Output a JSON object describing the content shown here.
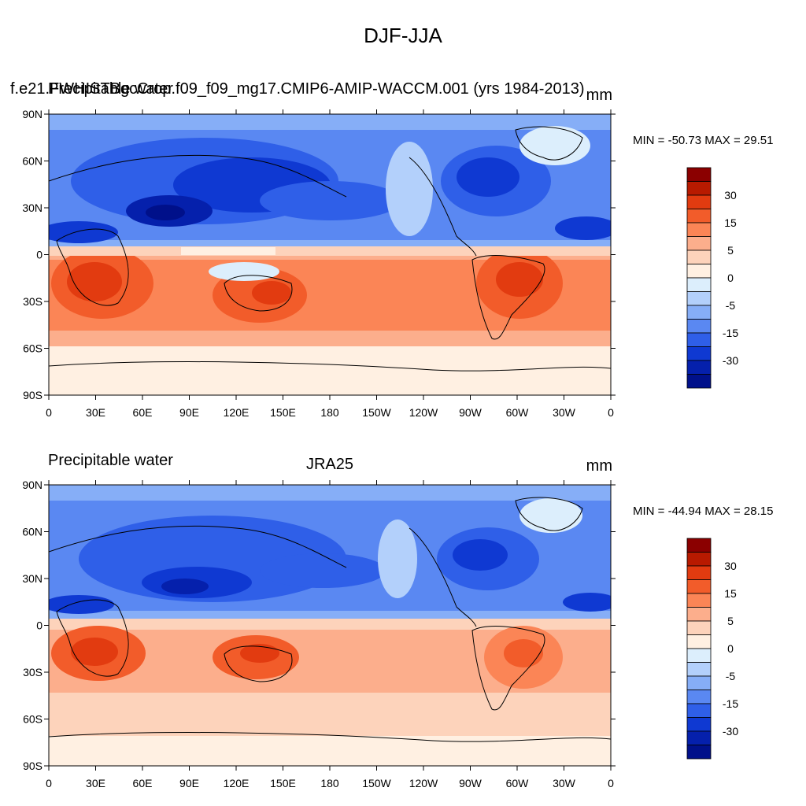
{
  "figure": {
    "title": "DJF-JJA"
  },
  "panels": [
    {
      "left_label": "f.e21.FWHISTBgcCrop.f09_f09_mg17.CMIP6-AMIP-WACCM.001 (yrs 1984-2013)",
      "left_overlay": "Precipitable water",
      "center_label": "",
      "units": "mm",
      "min_max": "MIN = -50.73 MAX =  29.51"
    },
    {
      "left_label": "Precipitable water",
      "left_overlay": "",
      "center_label": "JRA25",
      "units": "mm",
      "min_max": "MIN = -44.94 MAX =  28.15"
    }
  ],
  "axes": {
    "lat_labels": [
      "90N",
      "60N",
      "30N",
      "0",
      "30S",
      "60S",
      "90S"
    ],
    "lon_labels": [
      "0",
      "30E",
      "60E",
      "90E",
      "120E",
      "150E",
      "180",
      "150W",
      "120W",
      "90W",
      "60W",
      "30W",
      "0"
    ]
  },
  "colorbar": {
    "labels": [
      "30",
      "15",
      "5",
      "0",
      "-5",
      "-15",
      "-30"
    ],
    "colors": [
      "#8b0000",
      "#b81a00",
      "#e23b10",
      "#f25c2a",
      "#fb8556",
      "#fcae8c",
      "#fdd3bb",
      "#fff0e2",
      "#dceefc",
      "#b3d0fb",
      "#86aef7",
      "#5a88f2",
      "#2f5fe8",
      "#0f39d2",
      "#0520ac",
      "#00108a"
    ]
  }
}
